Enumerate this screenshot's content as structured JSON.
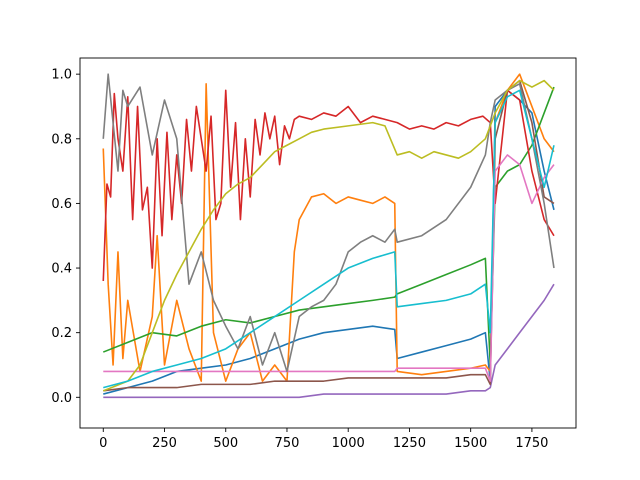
{
  "chart_data": {
    "type": "line",
    "title": "",
    "xlabel": "",
    "ylabel": "",
    "xlim": [
      -95,
      1930
    ],
    "ylim": [
      -0.095,
      1.05
    ],
    "xticks": [
      0,
      250,
      500,
      750,
      1000,
      1250,
      1500,
      1750
    ],
    "yticks": [
      0.0,
      0.2,
      0.4,
      0.6,
      0.8,
      1.0
    ],
    "xtick_labels": [
      "0",
      "250",
      "500",
      "750",
      "1000",
      "1250",
      "1500",
      "1750"
    ],
    "ytick_labels": [
      "0.0",
      "0.2",
      "0.4",
      "0.6",
      "0.8",
      "1.0"
    ],
    "grid": false,
    "legend": "none",
    "series": [
      {
        "color": "#1f77b4",
        "x": [
          0,
          100,
          200,
          300,
          400,
          500,
          600,
          700,
          800,
          900,
          1000,
          1100,
          1190,
          1200,
          1300,
          1400,
          1500,
          1560,
          1580,
          1600,
          1650,
          1700,
          1750,
          1800,
          1840
        ],
        "y": [
          0.01,
          0.03,
          0.05,
          0.08,
          0.09,
          0.1,
          0.12,
          0.15,
          0.18,
          0.2,
          0.21,
          0.22,
          0.21,
          0.12,
          0.14,
          0.16,
          0.18,
          0.2,
          0.05,
          0.9,
          0.95,
          0.92,
          0.88,
          0.7,
          0.58
        ]
      },
      {
        "color": "#ff7f0e",
        "x": [
          0,
          20,
          40,
          60,
          80,
          100,
          150,
          200,
          220,
          250,
          300,
          350,
          400,
          420,
          450,
          500,
          550,
          600,
          650,
          700,
          750,
          780,
          800,
          850,
          900,
          950,
          1000,
          1050,
          1100,
          1150,
          1190,
          1200,
          1300,
          1400,
          1500,
          1560,
          1580,
          1600,
          1650,
          1700,
          1750,
          1800,
          1840
        ],
        "y": [
          0.77,
          0.35,
          0.1,
          0.45,
          0.12,
          0.3,
          0.08,
          0.25,
          0.5,
          0.1,
          0.3,
          0.15,
          0.05,
          0.97,
          0.2,
          0.05,
          0.15,
          0.2,
          0.05,
          0.1,
          0.05,
          0.45,
          0.55,
          0.62,
          0.63,
          0.6,
          0.62,
          0.61,
          0.6,
          0.62,
          0.6,
          0.08,
          0.07,
          0.08,
          0.09,
          0.1,
          0.08,
          0.85,
          0.95,
          1.0,
          0.9,
          0.8,
          0.76
        ]
      },
      {
        "color": "#2ca02c",
        "x": [
          0,
          100,
          200,
          300,
          400,
          500,
          600,
          700,
          800,
          900,
          1000,
          1100,
          1190,
          1200,
          1300,
          1400,
          1500,
          1560,
          1580,
          1600,
          1650,
          1700,
          1750,
          1800,
          1840
        ],
        "y": [
          0.14,
          0.17,
          0.2,
          0.19,
          0.22,
          0.24,
          0.23,
          0.25,
          0.27,
          0.28,
          0.29,
          0.3,
          0.31,
          0.32,
          0.35,
          0.38,
          0.41,
          0.43,
          0.1,
          0.65,
          0.7,
          0.72,
          0.78,
          0.88,
          0.96
        ]
      },
      {
        "color": "#d62728",
        "x": [
          0,
          15,
          30,
          45,
          60,
          80,
          100,
          120,
          140,
          160,
          180,
          200,
          220,
          240,
          260,
          280,
          300,
          320,
          340,
          360,
          380,
          400,
          420,
          440,
          460,
          480,
          500,
          520,
          540,
          560,
          580,
          600,
          620,
          640,
          660,
          680,
          700,
          720,
          740,
          760,
          780,
          800,
          850,
          900,
          950,
          1000,
          1050,
          1100,
          1150,
          1200,
          1250,
          1300,
          1350,
          1400,
          1450,
          1500,
          1550,
          1580,
          1600,
          1650,
          1700,
          1750,
          1800,
          1840
        ],
        "y": [
          0.36,
          0.66,
          0.62,
          0.94,
          0.8,
          0.7,
          0.93,
          0.55,
          0.9,
          0.58,
          0.65,
          0.4,
          0.8,
          0.5,
          0.82,
          0.55,
          0.75,
          0.6,
          0.86,
          0.7,
          0.9,
          0.8,
          0.7,
          0.87,
          0.55,
          0.6,
          0.95,
          0.65,
          0.85,
          0.55,
          0.8,
          0.62,
          0.86,
          0.75,
          0.88,
          0.8,
          0.87,
          0.72,
          0.84,
          0.8,
          0.86,
          0.87,
          0.86,
          0.88,
          0.87,
          0.9,
          0.85,
          0.87,
          0.86,
          0.85,
          0.83,
          0.84,
          0.83,
          0.85,
          0.84,
          0.86,
          0.87,
          0.85,
          0.6,
          0.95,
          0.92,
          0.7,
          0.55,
          0.5
        ]
      },
      {
        "color": "#9467bd",
        "x": [
          0,
          100,
          200,
          300,
          400,
          500,
          600,
          700,
          800,
          900,
          1000,
          1100,
          1200,
          1300,
          1400,
          1500,
          1560,
          1580,
          1600,
          1650,
          1700,
          1750,
          1800,
          1840
        ],
        "y": [
          0.0,
          0.0,
          0.0,
          0.0,
          0.0,
          0.0,
          0.0,
          0.0,
          0.0,
          0.01,
          0.01,
          0.01,
          0.01,
          0.01,
          0.01,
          0.02,
          0.02,
          0.03,
          0.1,
          0.15,
          0.2,
          0.25,
          0.3,
          0.35
        ]
      },
      {
        "color": "#8c564b",
        "x": [
          0,
          100,
          200,
          300,
          400,
          500,
          600,
          700,
          800,
          900,
          1000,
          1100,
          1190,
          1200,
          1300,
          1400,
          1500,
          1560,
          1580,
          1600,
          1650,
          1700,
          1750,
          1800,
          1840
        ],
        "y": [
          0.02,
          0.03,
          0.03,
          0.03,
          0.04,
          0.04,
          0.04,
          0.05,
          0.05,
          0.05,
          0.06,
          0.06,
          0.06,
          0.06,
          0.06,
          0.06,
          0.07,
          0.07,
          0.04,
          0.8,
          0.95,
          0.98,
          0.85,
          0.62,
          0.6
        ]
      },
      {
        "color": "#e377c2",
        "x": [
          0,
          100,
          200,
          300,
          400,
          500,
          600,
          700,
          800,
          900,
          1000,
          1100,
          1190,
          1200,
          1300,
          1400,
          1500,
          1560,
          1580,
          1600,
          1650,
          1700,
          1750,
          1800,
          1840
        ],
        "y": [
          0.08,
          0.08,
          0.08,
          0.08,
          0.08,
          0.08,
          0.08,
          0.08,
          0.08,
          0.08,
          0.08,
          0.08,
          0.08,
          0.09,
          0.09,
          0.09,
          0.09,
          0.09,
          0.05,
          0.7,
          0.75,
          0.72,
          0.6,
          0.68,
          0.72
        ]
      },
      {
        "color": "#7f7f7f",
        "x": [
          0,
          20,
          40,
          60,
          80,
          100,
          150,
          200,
          250,
          300,
          350,
          400,
          450,
          500,
          550,
          600,
          650,
          700,
          750,
          800,
          850,
          900,
          950,
          1000,
          1050,
          1100,
          1150,
          1190,
          1200,
          1300,
          1400,
          1500,
          1560,
          1580,
          1600,
          1650,
          1700,
          1750,
          1800,
          1840
        ],
        "y": [
          0.8,
          1.0,
          0.85,
          0.7,
          0.95,
          0.9,
          0.96,
          0.75,
          0.92,
          0.8,
          0.35,
          0.45,
          0.3,
          0.22,
          0.15,
          0.25,
          0.1,
          0.2,
          0.08,
          0.25,
          0.28,
          0.3,
          0.35,
          0.45,
          0.48,
          0.5,
          0.48,
          0.52,
          0.48,
          0.5,
          0.55,
          0.65,
          0.75,
          0.85,
          0.92,
          0.95,
          0.97,
          0.8,
          0.6,
          0.4
        ]
      },
      {
        "color": "#bcbd22",
        "x": [
          0,
          100,
          150,
          200,
          250,
          300,
          350,
          400,
          450,
          500,
          550,
          600,
          650,
          700,
          750,
          800,
          850,
          900,
          1000,
          1100,
          1150,
          1200,
          1250,
          1300,
          1350,
          1400,
          1450,
          1500,
          1560,
          1600,
          1650,
          1700,
          1750,
          1800,
          1840
        ],
        "y": [
          0.02,
          0.05,
          0.1,
          0.2,
          0.3,
          0.38,
          0.45,
          0.52,
          0.58,
          0.63,
          0.66,
          0.68,
          0.72,
          0.76,
          0.78,
          0.8,
          0.82,
          0.83,
          0.84,
          0.85,
          0.84,
          0.75,
          0.76,
          0.74,
          0.76,
          0.75,
          0.74,
          0.76,
          0.8,
          0.88,
          0.95,
          0.98,
          0.96,
          0.98,
          0.95
        ]
      },
      {
        "color": "#17becf",
        "x": [
          0,
          100,
          200,
          300,
          400,
          500,
          600,
          700,
          800,
          900,
          1000,
          1100,
          1190,
          1200,
          1300,
          1400,
          1500,
          1560,
          1580,
          1600,
          1650,
          1700,
          1750,
          1800,
          1840
        ],
        "y": [
          0.03,
          0.05,
          0.08,
          0.1,
          0.12,
          0.15,
          0.2,
          0.25,
          0.3,
          0.35,
          0.4,
          0.43,
          0.45,
          0.28,
          0.29,
          0.3,
          0.32,
          0.35,
          0.2,
          0.85,
          0.93,
          0.95,
          0.8,
          0.65,
          0.78
        ]
      }
    ]
  }
}
